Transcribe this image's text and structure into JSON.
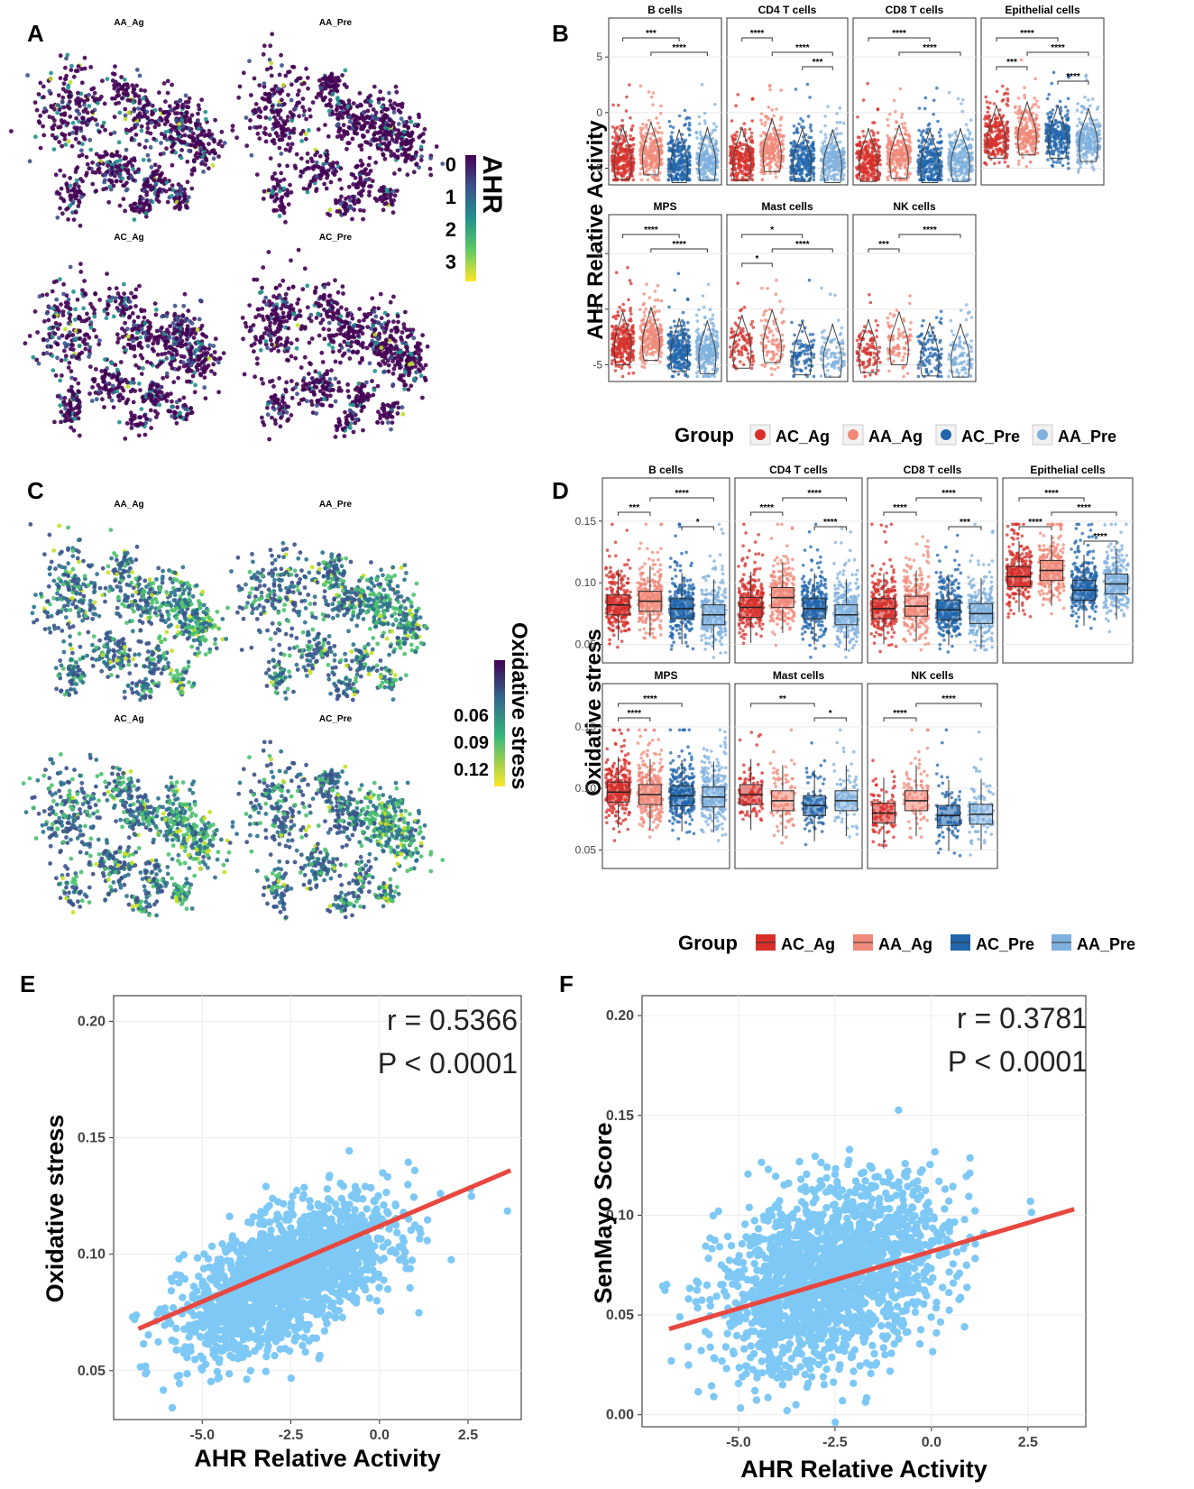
{
  "panel_letters": {
    "A": "A",
    "B": "B",
    "C": "C",
    "D": "D",
    "E": "E",
    "F": "F"
  },
  "panel_a": {
    "umap_titles": [
      "AA_Ag",
      "AA_Pre",
      "AC_Ag",
      "AC_Pre"
    ],
    "colorbar_title": "AHR",
    "colorbar_ticks": [
      "0",
      "1",
      "2",
      "3"
    ]
  },
  "panel_c": {
    "umap_titles": [
      "AA_Ag",
      "AA_Pre",
      "AC_Ag",
      "AC_Pre"
    ],
    "colorbar_title": "Oxidative stress",
    "colorbar_ticks": [
      "0.06",
      "0.09",
      "0.12"
    ]
  },
  "colors": {
    "AC_Ag": "#d7302b",
    "AA_Ag": "#f0897a",
    "AC_Pre": "#2166ac",
    "AA_Pre": "#7fb0de",
    "scatter": "#7ec8f5",
    "fit": "#e8473f",
    "viridis_dark": "#440154",
    "viridis_mid": "#21918c",
    "viridis_light": "#fde725"
  },
  "legend": {
    "title": "Group",
    "items": [
      "AC_Ag",
      "AA_Ag",
      "AC_Pre",
      "AA_Pre"
    ]
  },
  "chart_data": [
    {
      "id": "B",
      "type": "violin",
      "ylabel": "AHR Relative Activity",
      "ylim": [
        -6.5,
        8.5
      ],
      "yticks": [
        "5",
        "0",
        "-5"
      ],
      "facets": [
        {
          "title": "B cells",
          "medians": [
            -4.2,
            -3.8,
            -4.5,
            -4.3
          ],
          "brackets": [
            {
              "from": 0,
              "to": 2,
              "label": "***"
            },
            {
              "from": 1,
              "to": 3,
              "label": "****"
            }
          ]
        },
        {
          "title": "CD4 T cells",
          "medians": [
            -4.3,
            -3.5,
            -4.4,
            -4.5
          ],
          "brackets": [
            {
              "from": 0,
              "to": 1,
              "label": "****"
            },
            {
              "from": 1,
              "to": 3,
              "label": "****"
            },
            {
              "from": 2,
              "to": 3,
              "label": "***"
            }
          ]
        },
        {
          "title": "CD8 T cells",
          "medians": [
            -4.4,
            -4.1,
            -4.5,
            -4.4
          ],
          "brackets": [
            {
              "from": 0,
              "to": 2,
              "label": "****"
            },
            {
              "from": 1,
              "to": 3,
              "label": "****"
            }
          ]
        },
        {
          "title": "Epithelial cells",
          "medians": [
            -2.3,
            -2.0,
            -2.3,
            -2.6
          ],
          "brackets": [
            {
              "from": 0,
              "to": 2,
              "label": "****"
            },
            {
              "from": 1,
              "to": 3,
              "label": "****"
            },
            {
              "from": 0,
              "to": 1,
              "label": "***"
            },
            {
              "from": 2,
              "to": 3,
              "label": "****"
            }
          ]
        },
        {
          "title": "MPS",
          "medians": [
            -3.2,
            -2.8,
            -3.8,
            -4.0
          ],
          "brackets": [
            {
              "from": 0,
              "to": 2,
              "label": "****"
            },
            {
              "from": 1,
              "to": 3,
              "label": "****"
            }
          ]
        },
        {
          "title": "Mast cells",
          "medians": [
            -3.5,
            -3.0,
            -4.1,
            -4.3
          ],
          "brackets": [
            {
              "from": 0,
              "to": 2,
              "label": "*"
            },
            {
              "from": 1,
              "to": 3,
              "label": "****"
            },
            {
              "from": 0,
              "to": 1,
              "label": "*"
            }
          ]
        },
        {
          "title": "NK cells",
          "medians": [
            -3.9,
            -3.2,
            -4.2,
            -4.3
          ],
          "brackets": [
            {
              "from": 1,
              "to": 3,
              "label": "****"
            },
            {
              "from": 0,
              "to": 1,
              "label": "***"
            }
          ]
        }
      ]
    },
    {
      "id": "D",
      "type": "box",
      "ylabel": "Oxidative stress",
      "ylim": [
        0.035,
        0.185
      ],
      "yticks": [
        "0.15",
        "0.10",
        "0.05"
      ],
      "facets": [
        {
          "title": "B cells",
          "medians": [
            0.082,
            0.085,
            0.079,
            0.074
          ],
          "brackets": [
            {
              "from": 1,
              "to": 3,
              "label": "****"
            },
            {
              "from": 0,
              "to": 1,
              "label": "***"
            },
            {
              "from": 2,
              "to": 3,
              "label": "*"
            }
          ]
        },
        {
          "title": "CD4 T cells",
          "medians": [
            0.08,
            0.088,
            0.079,
            0.074
          ],
          "brackets": [
            {
              "from": 1,
              "to": 3,
              "label": "****"
            },
            {
              "from": 0,
              "to": 1,
              "label": "****"
            },
            {
              "from": 2,
              "to": 3,
              "label": "****"
            }
          ]
        },
        {
          "title": "CD8 T cells",
          "medians": [
            0.079,
            0.081,
            0.078,
            0.075
          ],
          "brackets": [
            {
              "from": 1,
              "to": 3,
              "label": "****"
            },
            {
              "from": 0,
              "to": 1,
              "label": "****"
            },
            {
              "from": 2,
              "to": 3,
              "label": "***"
            }
          ]
        },
        {
          "title": "Epithelial cells",
          "medians": [
            0.105,
            0.11,
            0.094,
            0.099
          ],
          "brackets": [
            {
              "from": 0,
              "to": 2,
              "label": "****"
            },
            {
              "from": 1,
              "to": 3,
              "label": "****"
            },
            {
              "from": 0,
              "to": 1,
              "label": "****"
            },
            {
              "from": 2,
              "to": 3,
              "label": "****"
            }
          ]
        },
        {
          "title": "MPS",
          "medians": [
            0.097,
            0.095,
            0.094,
            0.093
          ],
          "brackets": [
            {
              "from": 0,
              "to": 2,
              "label": "****"
            },
            {
              "from": 0,
              "to": 1,
              "label": "****"
            }
          ]
        },
        {
          "title": "Mast cells",
          "medians": [
            0.095,
            0.09,
            0.086,
            0.09
          ],
          "brackets": [
            {
              "from": 0,
              "to": 2,
              "label": "**"
            },
            {
              "from": 2,
              "to": 3,
              "label": "*"
            }
          ]
        },
        {
          "title": "NK cells",
          "medians": [
            0.08,
            0.09,
            0.078,
            0.079
          ],
          "brackets": [
            {
              "from": 1,
              "to": 3,
              "label": "****"
            },
            {
              "from": 0,
              "to": 1,
              "label": "****"
            }
          ]
        }
      ]
    },
    {
      "id": "E",
      "type": "scatter",
      "xlabel": "AHR Relative Activity",
      "ylabel": "Oxidative stress",
      "xlim": [
        -7.5,
        4.0
      ],
      "ylim": [
        0.029,
        0.211
      ],
      "xticks": [
        -5.0,
        -2.5,
        0.0,
        2.5
      ],
      "xtick_labels": [
        "-5.0",
        "-2.5",
        "0.0",
        "2.5"
      ],
      "yticks": [
        0.05,
        0.1,
        0.15,
        0.2
      ],
      "ytick_labels": [
        "0.05",
        "0.10",
        "0.15",
        "0.20"
      ],
      "fit_line": {
        "x": [
          -6.8,
          3.7
        ],
        "y": [
          0.068,
          0.136
        ]
      },
      "annotation_r": "r  =  0.5366",
      "annotation_p": "P < 0.0001"
    },
    {
      "id": "F",
      "type": "scatter",
      "xlabel": "AHR Relative Activity",
      "ylabel": "SenMayo Score",
      "xlim": [
        -7.5,
        4.0
      ],
      "ylim": [
        -0.006,
        0.21
      ],
      "xticks": [
        -5.0,
        -2.5,
        0.0,
        2.5
      ],
      "xtick_labels": [
        "-5.0",
        "-2.5",
        "0.0",
        "2.5"
      ],
      "yticks": [
        0.0,
        0.05,
        0.1,
        0.15,
        0.2
      ],
      "ytick_labels": [
        "0.00",
        "0.05",
        "0.10",
        "0.15",
        "0.20"
      ],
      "fit_line": {
        "x": [
          -6.8,
          3.7
        ],
        "y": [
          0.043,
          0.103
        ]
      },
      "annotation_r": "r  =  0.3781",
      "annotation_p": "P < 0.0001"
    }
  ]
}
